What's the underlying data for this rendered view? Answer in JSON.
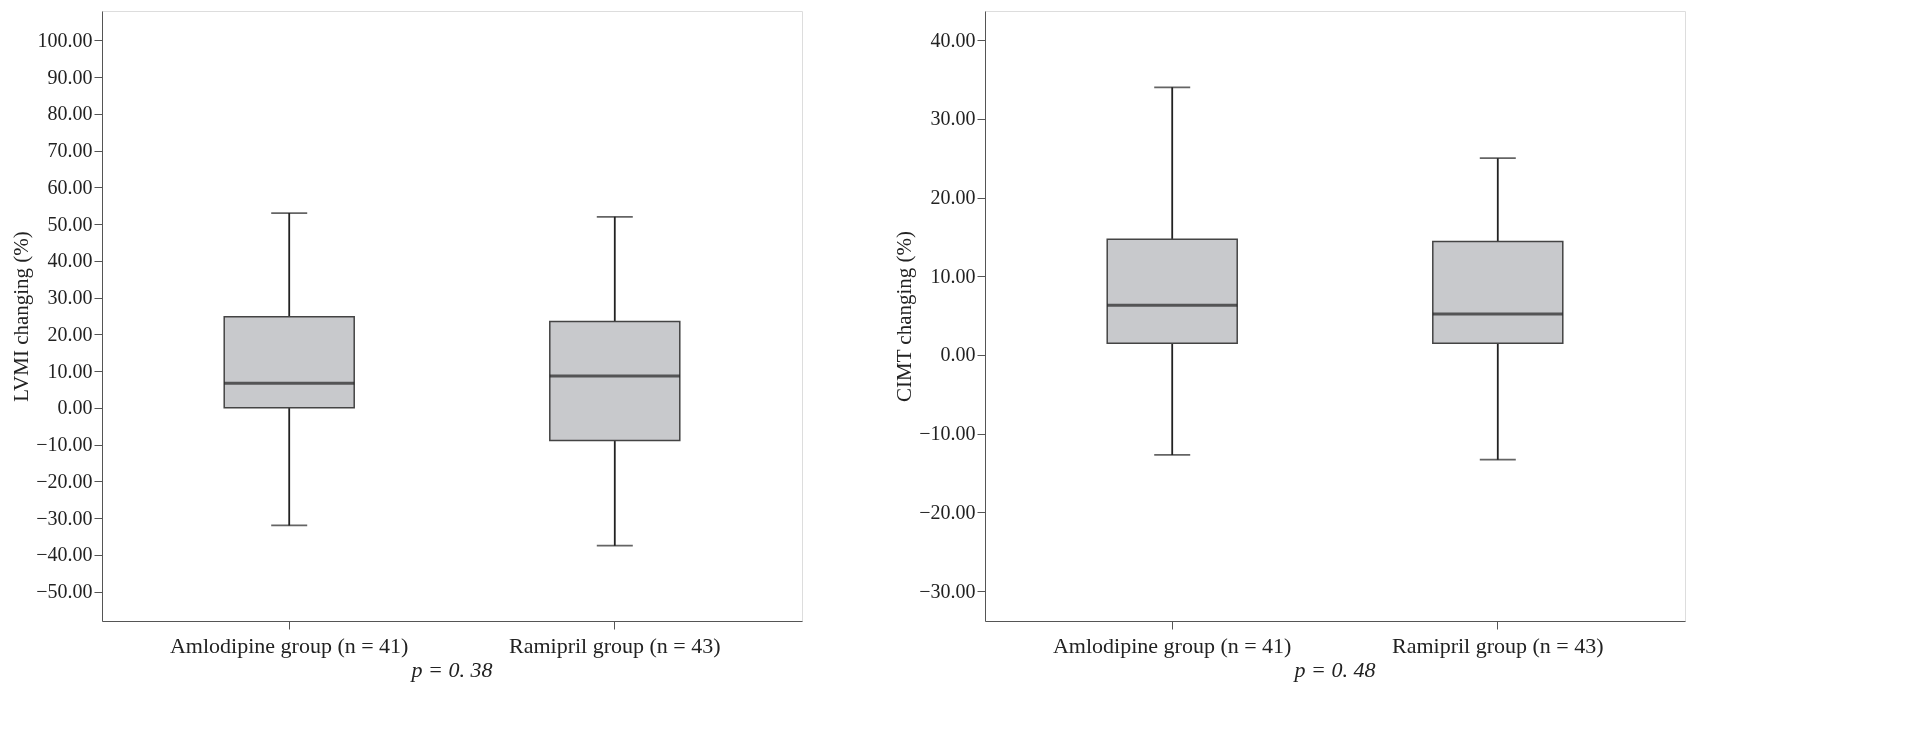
{
  "chart_data": [
    {
      "type": "box",
      "ylabel": "LVMI changing (%)",
      "categories": [
        "Amlodipine group (n = 41)",
        "Ramipril group (n = 43)"
      ],
      "color": "#c8c9cc",
      "grid": false,
      "ylim": [
        -58,
        108
      ],
      "yticks": [
        {
          "value": 100,
          "label": "100.00"
        },
        {
          "value": 90,
          "label": "90.00"
        },
        {
          "value": 80,
          "label": "80.00"
        },
        {
          "value": 70,
          "label": "70.00"
        },
        {
          "value": 60,
          "label": "60.00"
        },
        {
          "value": 50,
          "label": "50.00"
        },
        {
          "value": 40,
          "label": "40.00"
        },
        {
          "value": 30,
          "label": "30.00"
        },
        {
          "value": 20,
          "label": "20.00"
        },
        {
          "value": 10,
          "label": "10.00"
        },
        {
          "value": 0,
          "label": "0.00"
        },
        {
          "value": -10,
          "label": "−10.00"
        },
        {
          "value": -20,
          "label": "−20.00"
        },
        {
          "value": -30,
          "label": "−30.00"
        },
        {
          "value": -40,
          "label": "−40.00"
        },
        {
          "value": -50,
          "label": "−50.00"
        }
      ],
      "boxes": [
        {
          "low": -32,
          "q1": 0,
          "median": 6.7,
          "q3": 24.8,
          "high": 53
        },
        {
          "low": -37.5,
          "q1": -8.9,
          "median": 8.7,
          "q3": 23.5,
          "high": 52
        }
      ],
      "annotations": [
        "p = 0. 38"
      ]
    },
    {
      "type": "box",
      "ylabel": "CIMT changing (%)",
      "categories": [
        "Amlodipine group (n = 41)",
        "Ramipril group (n = 43)"
      ],
      "color": "#c8c9cc",
      "grid": false,
      "ylim": [
        -33.8,
        43.7
      ],
      "yticks": [
        {
          "value": 40,
          "label": "40.00"
        },
        {
          "value": 30,
          "label": "30.00"
        },
        {
          "value": 20,
          "label": "20.00"
        },
        {
          "value": 10,
          "label": "10.00"
        },
        {
          "value": 0,
          "label": "0.00"
        },
        {
          "value": -10,
          "label": "−10.00"
        },
        {
          "value": -20,
          "label": "−20.00"
        },
        {
          "value": -30,
          "label": "−30.00"
        }
      ],
      "boxes": [
        {
          "low": -12.7,
          "q1": 1.5,
          "median": 6.3,
          "q3": 14.7,
          "high": 34
        },
        {
          "low": -13.3,
          "q1": 1.5,
          "median": 5.2,
          "q3": 14.4,
          "high": 25
        }
      ],
      "annotations": [
        "p = 0. 48"
      ]
    }
  ]
}
